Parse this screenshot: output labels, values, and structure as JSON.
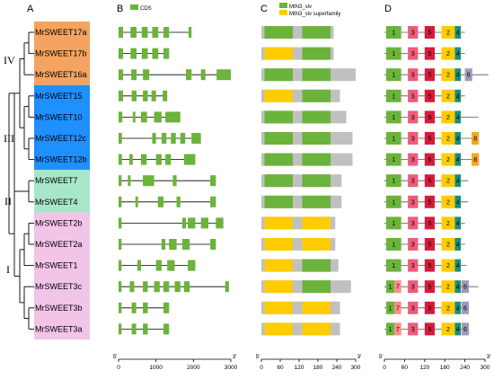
{
  "panels": [
    "A",
    "B",
    "C",
    "D"
  ],
  "clades": [
    "IV",
    "III",
    "II",
    "I"
  ],
  "genes": [
    {
      "name": "MrSWEET17a",
      "clade": "IV"
    },
    {
      "name": "MrSWEET17b",
      "clade": "IV"
    },
    {
      "name": "MrSWEET16a",
      "clade": "IV"
    },
    {
      "name": "MrSWEET15",
      "clade": "III"
    },
    {
      "name": "MrSWEET10",
      "clade": "III"
    },
    {
      "name": "MrSWEET12c",
      "clade": "III"
    },
    {
      "name": "MrSWEET12b",
      "clade": "III"
    },
    {
      "name": "MrSWEET7",
      "clade": "II"
    },
    {
      "name": "MrSWEET4",
      "clade": "II"
    },
    {
      "name": "MrSWEET2b",
      "clade": "I"
    },
    {
      "name": "MrSWEET2a",
      "clade": "I"
    },
    {
      "name": "MrSWEET1",
      "clade": "I"
    },
    {
      "name": "MrSWEET3c",
      "clade": "I"
    },
    {
      "name": "MrSWEET3b",
      "clade": "I"
    },
    {
      "name": "MrSWEET3a",
      "clade": "I"
    }
  ],
  "clade_colors": {
    "IV": "#f4a460",
    "III": "#1e90ff",
    "II": "#a8e6c9",
    "I": "#f2c4e8"
  },
  "legend_B": {
    "label": "CDS",
    "color": "#6bb33a"
  },
  "legend_C": [
    {
      "label": "MtN3_slv",
      "color": "#6bb33a"
    },
    {
      "label": "MtN3_slv superfamily",
      "color": "#ffcc00"
    }
  ],
  "axis_B": {
    "ticks": [
      "0",
      "1000",
      "2000",
      "3000"
    ],
    "max": 3000,
    "start": "5'",
    "end": "3'"
  },
  "axis_C": {
    "ticks": [
      "0",
      "60",
      "120",
      "180",
      "240",
      "300"
    ],
    "max": 300,
    "start": "5'",
    "end": "3'"
  },
  "axis_D": {
    "ticks": [
      "0",
      "60",
      "120",
      "180",
      "240",
      "300"
    ],
    "max": 300,
    "start": "5'",
    "end": "3'"
  },
  "gene_structure": [
    {
      "len": 1950,
      "exons": [
        [
          0,
          120
        ],
        [
          320,
          480
        ],
        [
          620,
          780
        ],
        [
          900,
          1060
        ],
        [
          1200,
          1350
        ],
        [
          1870,
          1950
        ]
      ]
    },
    {
      "len": 1350,
      "exons": [
        [
          0,
          120
        ],
        [
          320,
          480
        ],
        [
          620,
          780
        ],
        [
          900,
          1060
        ],
        [
          1200,
          1350
        ]
      ]
    },
    {
      "len": 3000,
      "exons": [
        [
          0,
          120
        ],
        [
          340,
          480
        ],
        [
          650,
          820
        ],
        [
          1800,
          1950
        ],
        [
          2200,
          2320
        ],
        [
          2620,
          3000
        ]
      ]
    },
    {
      "len": 1300,
      "exons": [
        [
          0,
          120
        ],
        [
          350,
          480
        ],
        [
          650,
          780
        ],
        [
          880,
          1000
        ],
        [
          1180,
          1300
        ]
      ]
    },
    {
      "len": 1650,
      "exons": [
        [
          0,
          100
        ],
        [
          380,
          450
        ],
        [
          600,
          760
        ],
        [
          950,
          1150
        ],
        [
          1250,
          1650
        ]
      ]
    },
    {
      "len": 2200,
      "exons": [
        [
          0,
          90
        ],
        [
          900,
          1000
        ],
        [
          1150,
          1280
        ],
        [
          1400,
          1530
        ],
        [
          1650,
          1780
        ],
        [
          1950,
          2200
        ]
      ]
    },
    {
      "len": 2050,
      "exons": [
        [
          0,
          90
        ],
        [
          290,
          380
        ],
        [
          600,
          750
        ],
        [
          1000,
          1150
        ],
        [
          1250,
          1400
        ],
        [
          1750,
          2050
        ]
      ]
    },
    {
      "len": 2600,
      "exons": [
        [
          0,
          80
        ],
        [
          250,
          320
        ],
        [
          650,
          950
        ],
        [
          1450,
          1550
        ],
        [
          2450,
          2600
        ]
      ]
    },
    {
      "len": 2600,
      "exons": [
        [
          0,
          80
        ],
        [
          450,
          520
        ],
        [
          1050,
          1200
        ],
        [
          1550,
          1650
        ],
        [
          2450,
          2600
        ]
      ]
    },
    {
      "len": 2800,
      "exons": [
        [
          0,
          80
        ],
        [
          1700,
          1800
        ],
        [
          1850,
          2050
        ],
        [
          2200,
          2400
        ],
        [
          2600,
          2800
        ]
      ]
    },
    {
      "len": 2600,
      "exons": [
        [
          0,
          80
        ],
        [
          1150,
          1250
        ],
        [
          1350,
          1550
        ],
        [
          1700,
          1900
        ],
        [
          2450,
          2600
        ]
      ]
    },
    {
      "len": 2050,
      "exons": [
        [
          0,
          80
        ],
        [
          500,
          600
        ],
        [
          1000,
          1150
        ],
        [
          1300,
          1500
        ],
        [
          1850,
          2050
        ]
      ]
    },
    {
      "len": 2950,
      "exons": [
        [
          0,
          80
        ],
        [
          300,
          420
        ],
        [
          650,
          780
        ],
        [
          950,
          1100
        ],
        [
          1200,
          1350
        ],
        [
          1500,
          1650
        ],
        [
          1750,
          1900
        ],
        [
          2850,
          2950
        ]
      ]
    },
    {
      "len": 1350,
      "exons": [
        [
          0,
          80
        ],
        [
          350,
          470
        ],
        [
          650,
          780
        ],
        [
          1200,
          1350
        ]
      ]
    },
    {
      "len": 1350,
      "exons": [
        [
          0,
          80
        ],
        [
          350,
          470
        ],
        [
          650,
          780
        ],
        [
          1200,
          1350
        ]
      ]
    }
  ],
  "protein_domains": [
    {
      "len": 230,
      "domains": [
        {
          "t": "slv",
          "s": 10,
          "e": 100
        },
        {
          "t": "slv",
          "s": 130,
          "e": 220
        }
      ]
    },
    {
      "len": 230,
      "domains": [
        {
          "t": "sup",
          "s": 10,
          "e": 100
        },
        {
          "t": "slv",
          "s": 130,
          "e": 220
        }
      ]
    },
    {
      "len": 300,
      "domains": [
        {
          "t": "slv",
          "s": 10,
          "e": 100
        },
        {
          "t": "slv",
          "s": 130,
          "e": 220
        }
      ]
    },
    {
      "len": 250,
      "domains": [
        {
          "t": "sup",
          "s": 10,
          "e": 100
        },
        {
          "t": "slv",
          "s": 130,
          "e": 220
        }
      ]
    },
    {
      "len": 270,
      "domains": [
        {
          "t": "slv",
          "s": 10,
          "e": 100
        },
        {
          "t": "slv",
          "s": 130,
          "e": 220
        }
      ]
    },
    {
      "len": 290,
      "domains": [
        {
          "t": "slv",
          "s": 10,
          "e": 100
        },
        {
          "t": "slv",
          "s": 130,
          "e": 220
        }
      ]
    },
    {
      "len": 290,
      "domains": [
        {
          "t": "slv",
          "s": 10,
          "e": 100
        },
        {
          "t": "slv",
          "s": 130,
          "e": 220
        }
      ]
    },
    {
      "len": 255,
      "domains": [
        {
          "t": "slv",
          "s": 10,
          "e": 100
        },
        {
          "t": "slv",
          "s": 130,
          "e": 220
        }
      ]
    },
    {
      "len": 255,
      "domains": [
        {
          "t": "slv",
          "s": 10,
          "e": 100
        },
        {
          "t": "slv",
          "s": 130,
          "e": 220
        }
      ]
    },
    {
      "len": 235,
      "domains": [
        {
          "t": "sup",
          "s": 10,
          "e": 100
        },
        {
          "t": "sup",
          "s": 130,
          "e": 220
        }
      ]
    },
    {
      "len": 235,
      "domains": [
        {
          "t": "sup",
          "s": 10,
          "e": 100
        },
        {
          "t": "sup",
          "s": 130,
          "e": 220
        }
      ]
    },
    {
      "len": 245,
      "domains": [
        {
          "t": "sup",
          "s": 10,
          "e": 100
        },
        {
          "t": "slv",
          "s": 130,
          "e": 220
        }
      ]
    },
    {
      "len": 285,
      "domains": [
        {
          "t": "sup",
          "s": 10,
          "e": 100
        },
        {
          "t": "slv",
          "s": 130,
          "e": 220
        }
      ]
    },
    {
      "len": 250,
      "domains": [
        {
          "t": "sup",
          "s": 10,
          "e": 100
        },
        {
          "t": "sup",
          "s": 130,
          "e": 220
        }
      ]
    },
    {
      "len": 250,
      "domains": [
        {
          "t": "sup",
          "s": 10,
          "e": 100
        },
        {
          "t": "sup",
          "s": 130,
          "e": 220
        }
      ]
    }
  ],
  "motif_colors": {
    "1": "#6bb33a",
    "2": "#ffcc00",
    "3": "#ef5b7a",
    "4": "#1a8f7a",
    "5": "#d61c3a",
    "6": "#a09ab8",
    "7": "#ff8c8c",
    "8": "#f5a623"
  },
  "motifs": [
    {
      "len": 240,
      "m": [
        {
          "n": "1",
          "s": 5,
          "e": 50
        },
        {
          "n": "3",
          "s": 70,
          "e": 100
        },
        {
          "n": "5",
          "s": 120,
          "e": 150
        },
        {
          "n": "2",
          "s": 170,
          "e": 210
        },
        {
          "n": "4",
          "s": 210,
          "e": 228
        }
      ]
    },
    {
      "len": 240,
      "m": [
        {
          "n": "1",
          "s": 5,
          "e": 50
        },
        {
          "n": "3",
          "s": 70,
          "e": 100
        },
        {
          "n": "5",
          "s": 120,
          "e": 150
        },
        {
          "n": "2",
          "s": 170,
          "e": 210
        },
        {
          "n": "4",
          "s": 210,
          "e": 228
        }
      ]
    },
    {
      "len": 310,
      "m": [
        {
          "n": "1",
          "s": 5,
          "e": 50
        },
        {
          "n": "3",
          "s": 70,
          "e": 100
        },
        {
          "n": "5",
          "s": 120,
          "e": 150
        },
        {
          "n": "2",
          "s": 170,
          "e": 210
        },
        {
          "n": "4",
          "s": 210,
          "e": 228
        },
        {
          "n": "6",
          "s": 240,
          "e": 262
        }
      ]
    },
    {
      "len": 240,
      "m": [
        {
          "n": "1",
          "s": 5,
          "e": 50
        },
        {
          "n": "3",
          "s": 70,
          "e": 100
        },
        {
          "n": "5",
          "s": 120,
          "e": 150
        },
        {
          "n": "2",
          "s": 170,
          "e": 210
        },
        {
          "n": "4",
          "s": 210,
          "e": 228
        }
      ]
    },
    {
      "len": 280,
      "m": [
        {
          "n": "1",
          "s": 5,
          "e": 50
        },
        {
          "n": "3",
          "s": 70,
          "e": 100
        },
        {
          "n": "5",
          "s": 120,
          "e": 150
        },
        {
          "n": "2",
          "s": 170,
          "e": 210
        },
        {
          "n": "4",
          "s": 210,
          "e": 228
        }
      ]
    },
    {
      "len": 280,
      "m": [
        {
          "n": "1",
          "s": 5,
          "e": 50
        },
        {
          "n": "3",
          "s": 70,
          "e": 100
        },
        {
          "n": "5",
          "s": 120,
          "e": 150
        },
        {
          "n": "2",
          "s": 170,
          "e": 210
        },
        {
          "n": "4",
          "s": 210,
          "e": 228
        },
        {
          "n": "8",
          "s": 260,
          "e": 282
        }
      ]
    },
    {
      "len": 280,
      "m": [
        {
          "n": "1",
          "s": 5,
          "e": 50
        },
        {
          "n": "3",
          "s": 70,
          "e": 100
        },
        {
          "n": "5",
          "s": 120,
          "e": 150
        },
        {
          "n": "2",
          "s": 170,
          "e": 210
        },
        {
          "n": "4",
          "s": 210,
          "e": 228
        },
        {
          "n": "8",
          "s": 260,
          "e": 282
        }
      ]
    },
    {
      "len": 250,
      "m": [
        {
          "n": "1",
          "s": 5,
          "e": 50
        },
        {
          "n": "3",
          "s": 70,
          "e": 100
        },
        {
          "n": "5",
          "s": 120,
          "e": 150
        },
        {
          "n": "2",
          "s": 170,
          "e": 210
        },
        {
          "n": "4",
          "s": 210,
          "e": 228
        }
      ]
    },
    {
      "len": 250,
      "m": [
        {
          "n": "1",
          "s": 5,
          "e": 50
        },
        {
          "n": "3",
          "s": 70,
          "e": 100
        },
        {
          "n": "5",
          "s": 120,
          "e": 150
        },
        {
          "n": "2",
          "s": 170,
          "e": 210
        },
        {
          "n": "4",
          "s": 210,
          "e": 228
        }
      ]
    },
    {
      "len": 240,
      "m": [
        {
          "n": "1",
          "s": 5,
          "e": 50
        },
        {
          "n": "3",
          "s": 70,
          "e": 100
        },
        {
          "n": "5",
          "s": 120,
          "e": 150
        },
        {
          "n": "2",
          "s": 170,
          "e": 210
        },
        {
          "n": "4",
          "s": 210,
          "e": 228
        }
      ]
    },
    {
      "len": 240,
      "m": [
        {
          "n": "1",
          "s": 5,
          "e": 50
        },
        {
          "n": "3",
          "s": 70,
          "e": 100
        },
        {
          "n": "5",
          "s": 120,
          "e": 150
        },
        {
          "n": "2",
          "s": 170,
          "e": 210
        },
        {
          "n": "4",
          "s": 210,
          "e": 228
        }
      ]
    },
    {
      "len": 245,
      "m": [
        {
          "n": "1",
          "s": 5,
          "e": 50
        },
        {
          "n": "3",
          "s": 70,
          "e": 100
        },
        {
          "n": "5",
          "s": 120,
          "e": 150
        },
        {
          "n": "2",
          "s": 170,
          "e": 210
        },
        {
          "n": "4",
          "s": 210,
          "e": 228
        }
      ]
    },
    {
      "len": 280,
      "m": [
        {
          "n": "1",
          "s": 5,
          "e": 30
        },
        {
          "n": "7",
          "s": 30,
          "e": 50
        },
        {
          "n": "3",
          "s": 70,
          "e": 100
        },
        {
          "n": "5",
          "s": 120,
          "e": 150
        },
        {
          "n": "2",
          "s": 170,
          "e": 210
        },
        {
          "n": "4",
          "s": 210,
          "e": 228
        },
        {
          "n": "6",
          "s": 230,
          "e": 252
        }
      ]
    },
    {
      "len": 250,
      "m": [
        {
          "n": "1",
          "s": 5,
          "e": 30
        },
        {
          "n": "7",
          "s": 30,
          "e": 50
        },
        {
          "n": "3",
          "s": 70,
          "e": 100
        },
        {
          "n": "5",
          "s": 120,
          "e": 150
        },
        {
          "n": "2",
          "s": 170,
          "e": 210
        },
        {
          "n": "4",
          "s": 210,
          "e": 228
        },
        {
          "n": "6",
          "s": 230,
          "e": 252
        }
      ]
    },
    {
      "len": 250,
      "m": [
        {
          "n": "1",
          "s": 5,
          "e": 30
        },
        {
          "n": "7",
          "s": 30,
          "e": 50
        },
        {
          "n": "3",
          "s": 70,
          "e": 100
        },
        {
          "n": "5",
          "s": 120,
          "e": 150
        },
        {
          "n": "2",
          "s": 170,
          "e": 210
        },
        {
          "n": "4",
          "s": 210,
          "e": 228
        },
        {
          "n": "6",
          "s": 230,
          "e": 252
        }
      ]
    }
  ]
}
